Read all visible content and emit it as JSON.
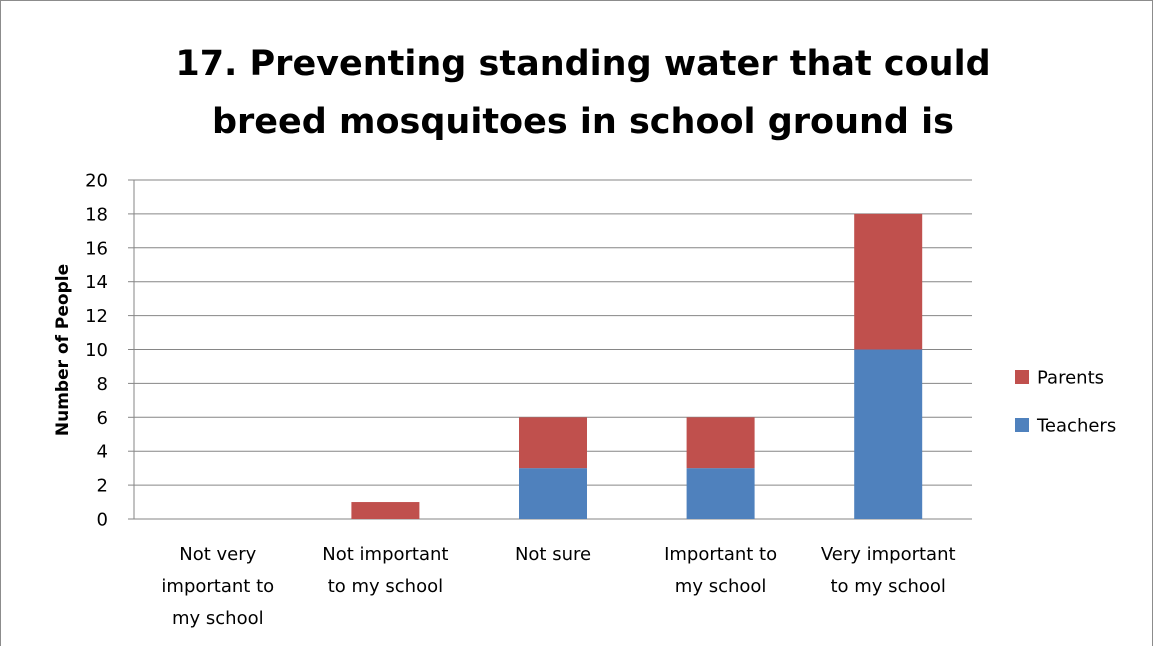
{
  "chart_data": {
    "type": "bar",
    "stacked": true,
    "title": "17. Preventing standing water that could breed mosquitoes in school ground is",
    "title_lines": [
      "17. Preventing standing water that could",
      "breed mosquitoes in school ground is"
    ],
    "xlabel": "",
    "ylabel": "Number of People",
    "ylim": [
      0,
      20
    ],
    "ytick_step": 2,
    "grid": true,
    "legend_position": "right",
    "categories": [
      "Not very important to my school",
      "Not important to my school",
      "Not sure",
      "Important to my school",
      "Very important to my school"
    ],
    "category_lines": [
      [
        "Not very",
        "important to",
        "my school"
      ],
      [
        "Not important",
        "to my school"
      ],
      [
        "Not sure"
      ],
      [
        "Important to",
        "my school"
      ],
      [
        "Very important",
        "to my school"
      ]
    ],
    "series": [
      {
        "name": "Teachers",
        "color": "#4f81bd",
        "values": [
          0,
          0,
          3,
          3,
          10
        ]
      },
      {
        "name": "Parents",
        "color": "#c0504d",
        "values": [
          0,
          1,
          3,
          3,
          8
        ]
      }
    ],
    "legend_order": [
      "Parents",
      "Teachers"
    ]
  }
}
